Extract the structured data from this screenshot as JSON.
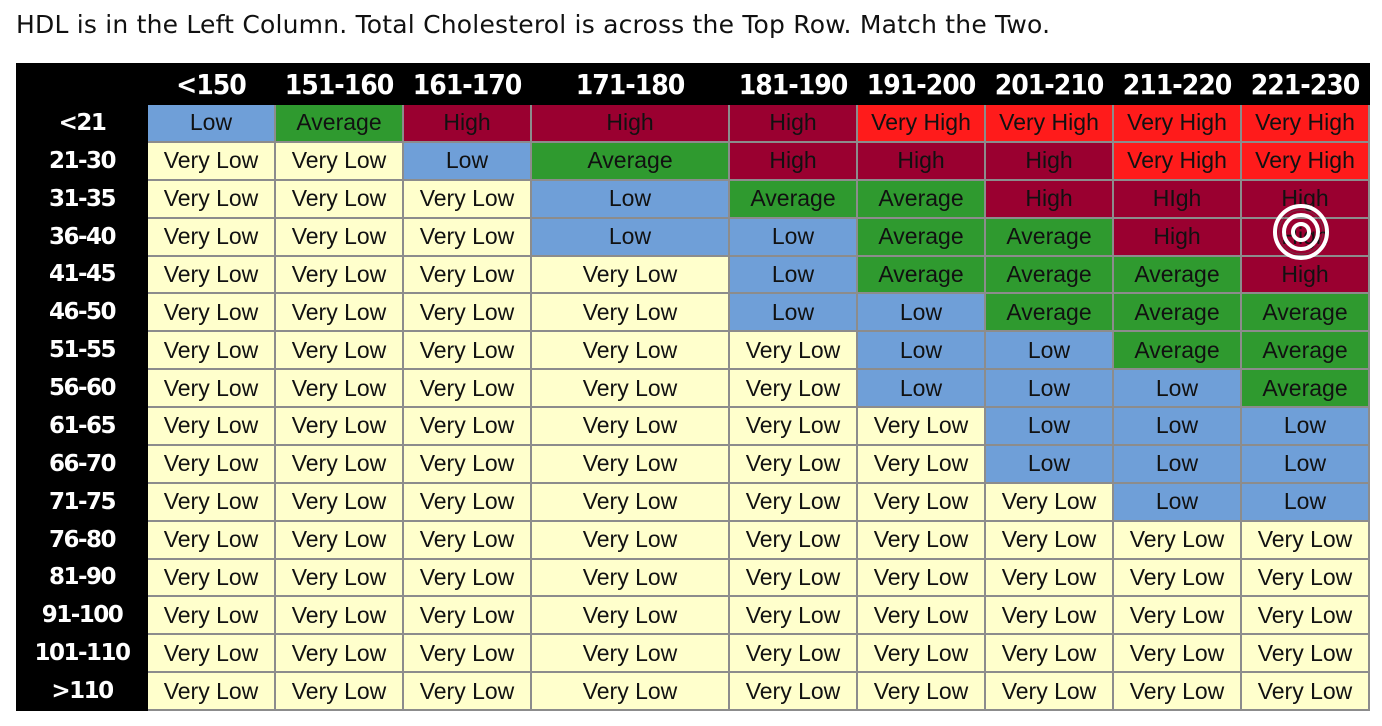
{
  "caption": "HDL is in the Left Column. Total Cholesterol is across the Top Row. Match the Two.",
  "table": {
    "corner": "",
    "columns": [
      "<150",
      "151-160",
      "161-170",
      "171-180",
      "181-190",
      "191-200",
      "201-210",
      "211-220",
      "221-230"
    ],
    "rows": [
      {
        "label": "<21",
        "cells": [
          "Low",
          "Average",
          "High",
          "High",
          "High",
          "Very High",
          "Very High",
          "Very High",
          "Very High"
        ]
      },
      {
        "label": "21-30",
        "cells": [
          "Very Low",
          "Very Low",
          "Low",
          "Average",
          "High",
          "High",
          "High",
          "Very High",
          "Very High"
        ]
      },
      {
        "label": "31-35",
        "cells": [
          "Very Low",
          "Very Low",
          "Very Low",
          "Low",
          "Average",
          "Average",
          "High",
          "HIgh",
          "High"
        ]
      },
      {
        "label": "36-40",
        "cells": [
          "Very Low",
          "Very Low",
          "Very Low",
          "Low",
          "Low",
          "Average",
          "Average",
          "High",
          "High"
        ]
      },
      {
        "label": "41-45",
        "cells": [
          "Very Low",
          "Very Low",
          "Very Low",
          "Very Low",
          "Low",
          "Average",
          "Average",
          "Average",
          "High"
        ]
      },
      {
        "label": "46-50",
        "cells": [
          "Very Low",
          "Very Low",
          "Very Low",
          "Very Low",
          "Low",
          "Low",
          "Average",
          "Average",
          "Average"
        ]
      },
      {
        "label": "51-55",
        "cells": [
          "Very Low",
          "Very Low",
          "Very Low",
          "Very Low",
          "Very Low",
          "Low",
          "Low",
          "Average",
          "Average"
        ]
      },
      {
        "label": "56-60",
        "cells": [
          "Very Low",
          "Very Low",
          "Very Low",
          "Very Low",
          "Very Low",
          "Low",
          "Low",
          "Low",
          "Average"
        ]
      },
      {
        "label": "61-65",
        "cells": [
          "Very Low",
          "Very Low",
          "Very Low",
          "Very Low",
          "Very Low",
          "Very Low",
          "Low",
          "Low",
          "Low"
        ]
      },
      {
        "label": "66-70",
        "cells": [
          "Very Low",
          "Very Low",
          "Very Low",
          "Very Low",
          "Very Low",
          "Very Low",
          "Low",
          "Low",
          "Low"
        ]
      },
      {
        "label": "71-75",
        "cells": [
          "Very Low",
          "Very Low",
          "Very Low",
          "Very Low",
          "Very Low",
          "Very Low",
          "Very Low",
          "Low",
          "Low"
        ]
      },
      {
        "label": "76-80",
        "cells": [
          "Very Low",
          "Very Low",
          "Very Low",
          "Very Low",
          "Very Low",
          "Very Low",
          "Very Low",
          "Very Low",
          "Very Low"
        ]
      },
      {
        "label": "81-90",
        "cells": [
          "Very Low",
          "Very Low",
          "Very Low",
          "Very Low",
          "Very Low",
          "Very Low",
          "Very Low",
          "Very Low",
          "Very Low"
        ]
      },
      {
        "label": "91-100",
        "cells": [
          "Very Low",
          "Very Low",
          "Very Low",
          "Very Low",
          "Very Low",
          "Very Low",
          "Very Low",
          "Very Low",
          "Very Low"
        ]
      },
      {
        "label": "101-110",
        "cells": [
          "Very Low",
          "Very Low",
          "Very Low",
          "Very Low",
          "Very Low",
          "Very Low",
          "Very Low",
          "Very Low",
          "Very Low"
        ]
      },
      {
        "label": ">110",
        "cells": [
          "Very Low",
          "Very Low",
          "Very Low",
          "Very Low",
          "Very Low",
          "Very Low",
          "Very Low",
          "Very Low",
          "Very Low"
        ]
      }
    ]
  },
  "colors": {
    "very_low": "#ffffcc",
    "low": "#6f9fd8",
    "average": "#2f9a2f",
    "high": "#9a0030",
    "very_high": "#ff1b1b",
    "header_bg": "#000000"
  },
  "cursor": {
    "icon": "target-cursor-icon"
  }
}
